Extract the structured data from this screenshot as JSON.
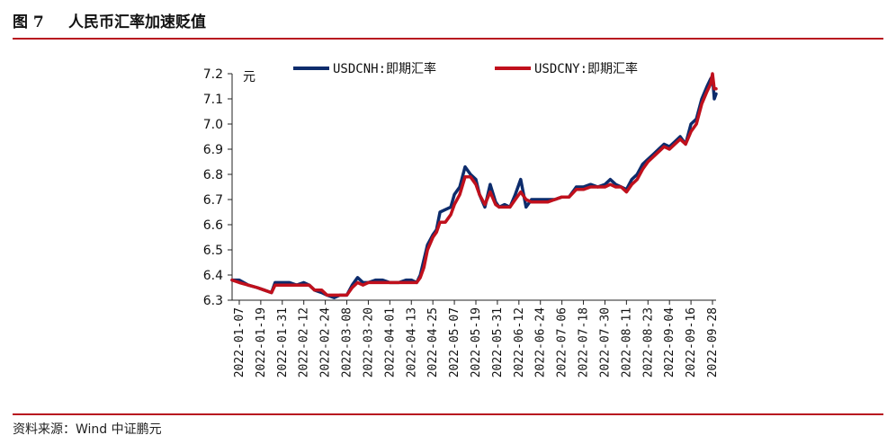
{
  "header": {
    "figure_number": "图 7",
    "title": "人民币汇率加速贬值"
  },
  "footer": {
    "source": "资料来源：Wind   中证鹏元"
  },
  "colors": {
    "rule": "#b8141f",
    "cnh": "#0d2c6c",
    "cny": "#c0101c"
  },
  "chart_data": {
    "type": "line",
    "title": "",
    "xlabel": "",
    "ylabel": "元",
    "ylim": [
      6.3,
      7.2
    ],
    "yticks": [
      "6.3",
      "6.4",
      "6.5",
      "6.6",
      "6.7",
      "6.8",
      "6.9",
      "7.0",
      "7.1",
      "7.2"
    ],
    "x_ticks": [
      "2022-01-07",
      "2022-01-19",
      "2022-01-31",
      "2022-02-12",
      "2022-02-24",
      "2022-03-08",
      "2022-03-20",
      "2022-04-01",
      "2022-04-13",
      "2022-04-25",
      "2022-05-07",
      "2022-05-19",
      "2022-05-31",
      "2022-06-12",
      "2022-06-24",
      "2022-07-06",
      "2022-07-18",
      "2022-07-30",
      "2022-08-11",
      "2022-08-23",
      "2022-09-04",
      "2022-09-16",
      "2022-09-28"
    ],
    "grid": false,
    "legend_position": "top",
    "series": [
      {
        "name": "USDCNH:即期汇率",
        "color": "#0d2c6c",
        "points": [
          [
            "2022-01-03",
            6.38
          ],
          [
            "2022-01-07",
            6.38
          ],
          [
            "2022-01-12",
            6.36
          ],
          [
            "2022-01-17",
            6.35
          ],
          [
            "2022-01-21",
            6.34
          ],
          [
            "2022-01-25",
            6.33
          ],
          [
            "2022-01-27",
            6.37
          ],
          [
            "2022-01-31",
            6.37
          ],
          [
            "2022-02-04",
            6.37
          ],
          [
            "2022-02-08",
            6.36
          ],
          [
            "2022-02-12",
            6.37
          ],
          [
            "2022-02-15",
            6.36
          ],
          [
            "2022-02-18",
            6.34
          ],
          [
            "2022-02-22",
            6.33
          ],
          [
            "2022-02-25",
            6.32
          ],
          [
            "2022-03-01",
            6.31
          ],
          [
            "2022-03-04",
            6.32
          ],
          [
            "2022-03-08",
            6.32
          ],
          [
            "2022-03-11",
            6.36
          ],
          [
            "2022-03-14",
            6.39
          ],
          [
            "2022-03-17",
            6.37
          ],
          [
            "2022-03-20",
            6.37
          ],
          [
            "2022-03-24",
            6.38
          ],
          [
            "2022-03-28",
            6.38
          ],
          [
            "2022-04-01",
            6.37
          ],
          [
            "2022-04-06",
            6.37
          ],
          [
            "2022-04-10",
            6.38
          ],
          [
            "2022-04-13",
            6.38
          ],
          [
            "2022-04-16",
            6.37
          ],
          [
            "2022-04-18",
            6.4
          ],
          [
            "2022-04-20",
            6.46
          ],
          [
            "2022-04-22",
            6.52
          ],
          [
            "2022-04-25",
            6.56
          ],
          [
            "2022-04-27",
            6.58
          ],
          [
            "2022-04-29",
            6.65
          ],
          [
            "2022-05-02",
            6.66
          ],
          [
            "2022-05-05",
            6.67
          ],
          [
            "2022-05-07",
            6.72
          ],
          [
            "2022-05-10",
            6.75
          ],
          [
            "2022-05-13",
            6.83
          ],
          [
            "2022-05-16",
            6.8
          ],
          [
            "2022-05-19",
            6.78
          ],
          [
            "2022-05-21",
            6.72
          ],
          [
            "2022-05-24",
            6.67
          ],
          [
            "2022-05-27",
            6.76
          ],
          [
            "2022-05-30",
            6.69
          ],
          [
            "2022-06-01",
            6.67
          ],
          [
            "2022-06-04",
            6.68
          ],
          [
            "2022-06-07",
            6.67
          ],
          [
            "2022-06-10",
            6.72
          ],
          [
            "2022-06-13",
            6.78
          ],
          [
            "2022-06-16",
            6.67
          ],
          [
            "2022-06-19",
            6.7
          ],
          [
            "2022-06-24",
            6.7
          ],
          [
            "2022-06-28",
            6.7
          ],
          [
            "2022-07-02",
            6.7
          ],
          [
            "2022-07-06",
            6.71
          ],
          [
            "2022-07-10",
            6.71
          ],
          [
            "2022-07-14",
            6.75
          ],
          [
            "2022-07-18",
            6.75
          ],
          [
            "2022-07-22",
            6.76
          ],
          [
            "2022-07-26",
            6.75
          ],
          [
            "2022-07-30",
            6.76
          ],
          [
            "2022-08-02",
            6.78
          ],
          [
            "2022-08-05",
            6.76
          ],
          [
            "2022-08-08",
            6.75
          ],
          [
            "2022-08-11",
            6.74
          ],
          [
            "2022-08-14",
            6.78
          ],
          [
            "2022-08-17",
            6.8
          ],
          [
            "2022-08-20",
            6.84
          ],
          [
            "2022-08-23",
            6.86
          ],
          [
            "2022-08-26",
            6.88
          ],
          [
            "2022-08-29",
            6.9
          ],
          [
            "2022-09-01",
            6.92
          ],
          [
            "2022-09-04",
            6.91
          ],
          [
            "2022-09-07",
            6.93
          ],
          [
            "2022-09-10",
            6.95
          ],
          [
            "2022-09-13",
            6.92
          ],
          [
            "2022-09-16",
            7.0
          ],
          [
            "2022-09-19",
            7.02
          ],
          [
            "2022-09-22",
            7.1
          ],
          [
            "2022-09-25",
            7.15
          ],
          [
            "2022-09-27",
            7.18
          ],
          [
            "2022-09-28",
            7.19
          ],
          [
            "2022-09-29",
            7.1
          ],
          [
            "2022-09-30",
            7.12
          ]
        ]
      },
      {
        "name": "USDCNY:即期汇率",
        "color": "#c0101c",
        "points": [
          [
            "2022-01-03",
            6.38
          ],
          [
            "2022-01-07",
            6.37
          ],
          [
            "2022-01-12",
            6.36
          ],
          [
            "2022-01-17",
            6.35
          ],
          [
            "2022-01-21",
            6.34
          ],
          [
            "2022-01-25",
            6.33
          ],
          [
            "2022-01-27",
            6.36
          ],
          [
            "2022-01-31",
            6.36
          ],
          [
            "2022-02-04",
            6.36
          ],
          [
            "2022-02-08",
            6.36
          ],
          [
            "2022-02-12",
            6.36
          ],
          [
            "2022-02-15",
            6.36
          ],
          [
            "2022-02-18",
            6.34
          ],
          [
            "2022-02-22",
            6.34
          ],
          [
            "2022-02-25",
            6.32
          ],
          [
            "2022-03-01",
            6.32
          ],
          [
            "2022-03-04",
            6.32
          ],
          [
            "2022-03-08",
            6.32
          ],
          [
            "2022-03-11",
            6.35
          ],
          [
            "2022-03-14",
            6.37
          ],
          [
            "2022-03-17",
            6.36
          ],
          [
            "2022-03-20",
            6.37
          ],
          [
            "2022-03-24",
            6.37
          ],
          [
            "2022-03-28",
            6.37
          ],
          [
            "2022-04-01",
            6.37
          ],
          [
            "2022-04-06",
            6.37
          ],
          [
            "2022-04-10",
            6.37
          ],
          [
            "2022-04-13",
            6.37
          ],
          [
            "2022-04-16",
            6.37
          ],
          [
            "2022-04-18",
            6.39
          ],
          [
            "2022-04-20",
            6.43
          ],
          [
            "2022-04-22",
            6.5
          ],
          [
            "2022-04-25",
            6.55
          ],
          [
            "2022-04-27",
            6.57
          ],
          [
            "2022-04-29",
            6.61
          ],
          [
            "2022-05-02",
            6.61
          ],
          [
            "2022-05-05",
            6.64
          ],
          [
            "2022-05-07",
            6.68
          ],
          [
            "2022-05-10",
            6.72
          ],
          [
            "2022-05-13",
            6.79
          ],
          [
            "2022-05-16",
            6.79
          ],
          [
            "2022-05-19",
            6.76
          ],
          [
            "2022-05-21",
            6.72
          ],
          [
            "2022-05-24",
            6.68
          ],
          [
            "2022-05-27",
            6.73
          ],
          [
            "2022-05-30",
            6.68
          ],
          [
            "2022-06-01",
            6.67
          ],
          [
            "2022-06-04",
            6.67
          ],
          [
            "2022-06-07",
            6.67
          ],
          [
            "2022-06-10",
            6.7
          ],
          [
            "2022-06-13",
            6.73
          ],
          [
            "2022-06-16",
            6.7
          ],
          [
            "2022-06-19",
            6.69
          ],
          [
            "2022-06-24",
            6.69
          ],
          [
            "2022-06-28",
            6.69
          ],
          [
            "2022-07-02",
            6.7
          ],
          [
            "2022-07-06",
            6.71
          ],
          [
            "2022-07-10",
            6.71
          ],
          [
            "2022-07-14",
            6.74
          ],
          [
            "2022-07-18",
            6.74
          ],
          [
            "2022-07-22",
            6.75
          ],
          [
            "2022-07-26",
            6.75
          ],
          [
            "2022-07-30",
            6.75
          ],
          [
            "2022-08-02",
            6.76
          ],
          [
            "2022-08-05",
            6.75
          ],
          [
            "2022-08-08",
            6.75
          ],
          [
            "2022-08-11",
            6.73
          ],
          [
            "2022-08-14",
            6.76
          ],
          [
            "2022-08-17",
            6.78
          ],
          [
            "2022-08-20",
            6.82
          ],
          [
            "2022-08-23",
            6.85
          ],
          [
            "2022-08-26",
            6.87
          ],
          [
            "2022-08-29",
            6.89
          ],
          [
            "2022-09-01",
            6.91
          ],
          [
            "2022-09-04",
            6.9
          ],
          [
            "2022-09-07",
            6.92
          ],
          [
            "2022-09-10",
            6.94
          ],
          [
            "2022-09-13",
            6.92
          ],
          [
            "2022-09-16",
            6.97
          ],
          [
            "2022-09-19",
            7.0
          ],
          [
            "2022-09-22",
            7.08
          ],
          [
            "2022-09-25",
            7.13
          ],
          [
            "2022-09-27",
            7.16
          ],
          [
            "2022-09-28",
            7.2
          ],
          [
            "2022-09-29",
            7.14
          ],
          [
            "2022-09-30",
            7.14
          ]
        ]
      }
    ]
  }
}
